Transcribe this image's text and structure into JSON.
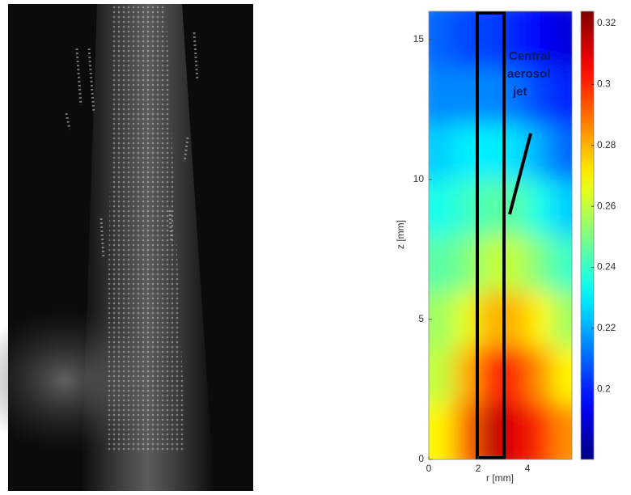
{
  "chart_data": {
    "type": "heatmap",
    "xlabel": "r [mm]",
    "ylabel": "z [mm]",
    "xlim": [
      0,
      5.8
    ],
    "ylim": [
      0,
      16
    ],
    "xticks": [
      0,
      2,
      4
    ],
    "yticks": [
      0,
      5,
      10,
      15
    ],
    "x": [
      0.5,
      1.5,
      2.5,
      3.5,
      4.5,
      5.5
    ],
    "y": [
      1,
      3,
      5,
      7,
      9,
      11,
      13,
      15
    ],
    "z": [
      [
        0.27,
        0.29,
        0.315,
        0.31,
        0.3,
        0.285
      ],
      [
        0.26,
        0.28,
        0.3,
        0.3,
        0.285,
        0.27
      ],
      [
        0.255,
        0.265,
        0.28,
        0.28,
        0.27,
        0.255
      ],
      [
        0.245,
        0.25,
        0.26,
        0.26,
        0.25,
        0.24
      ],
      [
        0.235,
        0.24,
        0.245,
        0.245,
        0.235,
        0.225
      ],
      [
        0.225,
        0.23,
        0.23,
        0.228,
        0.22,
        0.21
      ],
      [
        0.215,
        0.215,
        0.215,
        0.212,
        0.205,
        0.2
      ],
      [
        0.21,
        0.205,
        0.205,
        0.2,
        0.195,
        0.19
      ]
    ],
    "colormap": "jet",
    "clim": [
      0.177,
      0.324
    ],
    "cticks": [
      0.2,
      0.22,
      0.24,
      0.26,
      0.28,
      0.3,
      0.32
    ],
    "annotation": [
      "Central",
      "aerosol",
      "jet"
    ]
  }
}
